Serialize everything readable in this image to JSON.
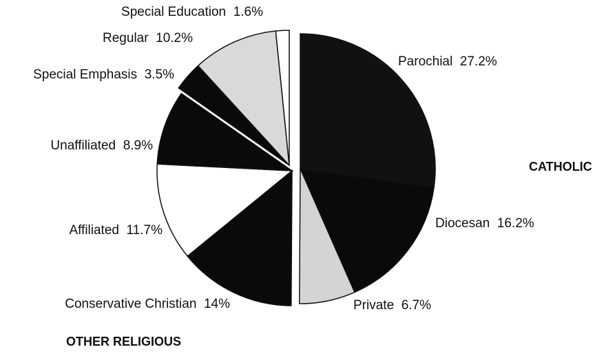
{
  "chart_data": {
    "type": "pie",
    "categories": [
      "Parochial",
      "Diocesan",
      "Private",
      "Conservative Christian",
      "Affiliated",
      "Unaffiliated",
      "Special Emphasis",
      "Regular",
      "Special Education"
    ],
    "values": [
      27.2,
      16.2,
      6.7,
      14,
      11.7,
      8.9,
      3.5,
      10.2,
      1.6
    ],
    "value_labels": [
      "27.2%",
      "16.2%",
      "6.7%",
      "14%",
      "11.7%",
      "8.9%",
      "3.5%",
      "10.2%",
      "1.6%"
    ],
    "colors": [
      "#111111",
      "#0a0a0a",
      "#d4d4d4",
      "#0a0a0a",
      "#ffffff",
      "#0a0a0a",
      "#0a0a0a",
      "#d9d9d9",
      "#ffffff"
    ],
    "annotations": [
      "CATHOLIC",
      "OTHER RELIGIOUS"
    ]
  }
}
